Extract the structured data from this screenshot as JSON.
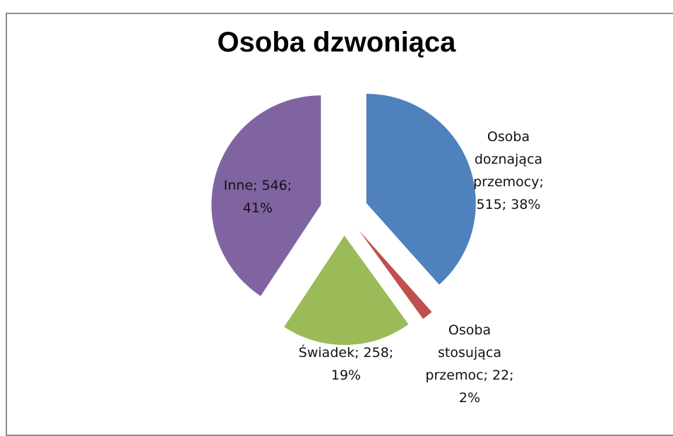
{
  "chart_data": {
    "type": "pie",
    "title": "Osoba dzwoniąca",
    "values": [
      515,
      22,
      258,
      546
    ],
    "value_labels": [
      "Osoba doznająca przemocy; 515; 38%",
      "Osoba stosująca przemoc; 22; 2%",
      "Świadek; 258; 19%",
      "Inne; 546; 41%"
    ],
    "colors": [
      "#4f81bd",
      "#c0504d",
      "#9bbb59",
      "#8064a2"
    ]
  }
}
